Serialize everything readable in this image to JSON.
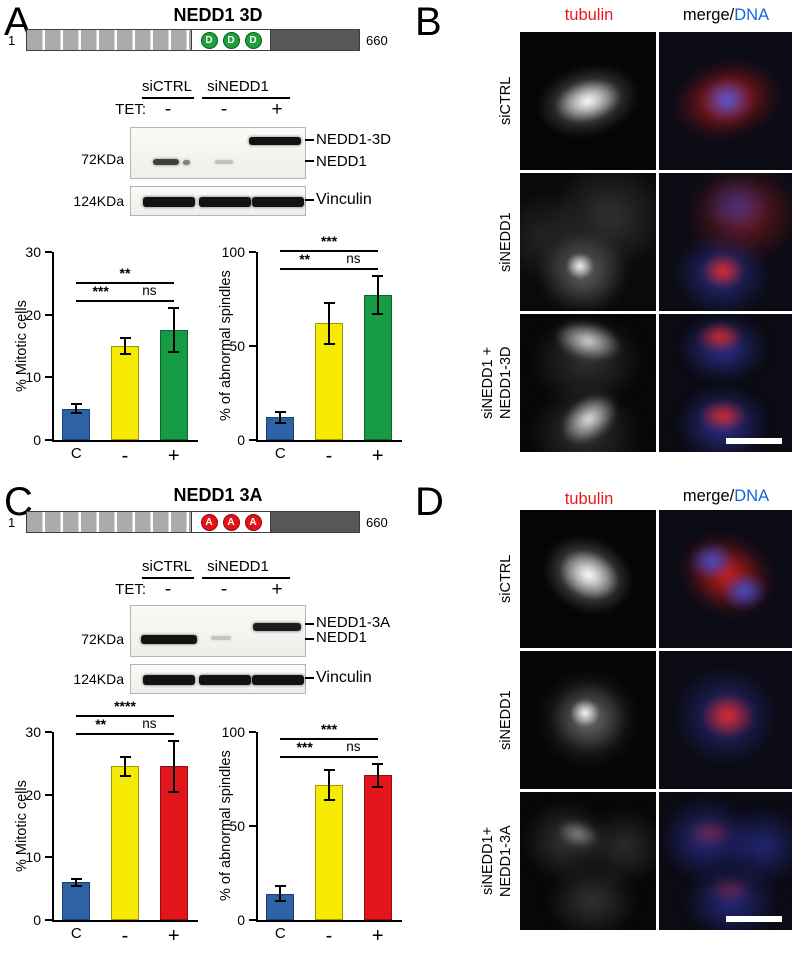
{
  "panels": {
    "a": {
      "letter": "A",
      "title": "NEDD1 3D",
      "schematic": {
        "start": "1",
        "end": "660",
        "residue": "D"
      },
      "blot": {
        "group1": "siCTRL",
        "group2": "siNEDD1",
        "tet": "TET:",
        "lane1": "-",
        "lane2": "-",
        "lane3": "+",
        "mw_upper": "72KDa",
        "mw_lower": "124KDa",
        "label_top": "NEDD1-3D",
        "label_mid": "NEDD1",
        "label_bottom": "Vinculin"
      }
    },
    "b": {
      "letter": "B",
      "col_tubulin": "tubulin",
      "col_merge": "merge/",
      "col_dna": "DNA",
      "rows": [
        {
          "l1": "siCTRL"
        },
        {
          "l1": "siNEDD1"
        },
        {
          "l1": "siNEDD1 +",
          "l2": "NEDD1-3D"
        }
      ]
    },
    "c": {
      "letter": "C",
      "title": "NEDD1 3A",
      "schematic": {
        "start": "1",
        "end": "660",
        "residue": "A"
      },
      "blot": {
        "group1": "siCTRL",
        "group2": "siNEDD1",
        "tet": "TET:",
        "lane1": "-",
        "lane2": "-",
        "lane3": "+",
        "mw_upper": "72KDa",
        "mw_lower": "124KDa",
        "label_top": "NEDD1-3A",
        "label_mid": "NEDD1",
        "label_bottom": "Vinculin"
      }
    },
    "d": {
      "letter": "D",
      "col_tubulin": "tubulin",
      "col_merge": "merge/",
      "col_dna": "DNA",
      "rows": [
        {
          "l1": "siCTRL"
        },
        {
          "l1": "siNEDD1"
        },
        {
          "l1": "siNEDD1+",
          "l2": "NEDD1-3A"
        }
      ]
    }
  },
  "colors": {
    "bar_blue": "#2d62a7",
    "bar_yellow": "#f5ea00",
    "bar_green": "#169c45",
    "bar_red": "#e2151d",
    "tubulin_label": "#e8191f",
    "dna_label": "#1565d8"
  },
  "chart_data": [
    {
      "id": "a_mitotic",
      "type": "bar",
      "ylabel": "% Mitotic cells",
      "categories": [
        "C",
        "-",
        "+"
      ],
      "values": [
        5,
        15,
        17.5
      ],
      "errors": [
        0.7,
        1.2,
        3.5
      ],
      "colors": [
        "#2d62a7",
        "#f5ea00",
        "#169c45"
      ],
      "ylim": [
        0,
        30
      ],
      "yticks": [
        0,
        10,
        20,
        30
      ],
      "sig": [
        {
          "a": 0,
          "b": 2,
          "label": "**",
          "row": 0
        },
        {
          "a": 0,
          "b": 1,
          "label": "***",
          "row": 1
        },
        {
          "a": 1,
          "b": 2,
          "label": "ns",
          "row": 1
        }
      ]
    },
    {
      "id": "a_spindles",
      "type": "bar",
      "ylabel": "% of abnormal spindles",
      "categories": [
        "C",
        "-",
        "+"
      ],
      "values": [
        12,
        62,
        77
      ],
      "errors": [
        3,
        11,
        10
      ],
      "colors": [
        "#2d62a7",
        "#f5ea00",
        "#169c45"
      ],
      "ylim": [
        0,
        100
      ],
      "yticks": [
        0,
        50,
        100
      ],
      "sig": [
        {
          "a": 0,
          "b": 2,
          "label": "***",
          "row": 0
        },
        {
          "a": 0,
          "b": 1,
          "label": "**",
          "row": 1
        },
        {
          "a": 1,
          "b": 2,
          "label": "ns",
          "row": 1
        }
      ]
    },
    {
      "id": "c_mitotic",
      "type": "bar",
      "ylabel": "% Mitotic cells",
      "categories": [
        "C",
        "-",
        "+"
      ],
      "values": [
        6,
        24.5,
        24.5
      ],
      "errors": [
        0.6,
        1.5,
        4
      ],
      "colors": [
        "#2d62a7",
        "#f5ea00",
        "#e2151d"
      ],
      "ylim": [
        0,
        30
      ],
      "yticks": [
        0,
        10,
        20,
        30
      ],
      "sig": [
        {
          "a": 0,
          "b": 2,
          "label": "****",
          "row": 0
        },
        {
          "a": 0,
          "b": 1,
          "label": "**",
          "row": 1
        },
        {
          "a": 1,
          "b": 2,
          "label": "ns",
          "row": 1
        }
      ]
    },
    {
      "id": "c_spindles",
      "type": "bar",
      "ylabel": "% of abnormal spindles",
      "categories": [
        "C",
        "-",
        "+"
      ],
      "values": [
        14,
        72,
        77
      ],
      "errors": [
        4,
        8,
        6
      ],
      "colors": [
        "#2d62a7",
        "#f5ea00",
        "#e2151d"
      ],
      "ylim": [
        0,
        100
      ],
      "yticks": [
        0,
        50,
        100
      ],
      "sig": [
        {
          "a": 0,
          "b": 2,
          "label": "***",
          "row": 0
        },
        {
          "a": 0,
          "b": 1,
          "label": "***",
          "row": 1
        },
        {
          "a": 1,
          "b": 2,
          "label": "ns",
          "row": 1
        }
      ]
    }
  ]
}
